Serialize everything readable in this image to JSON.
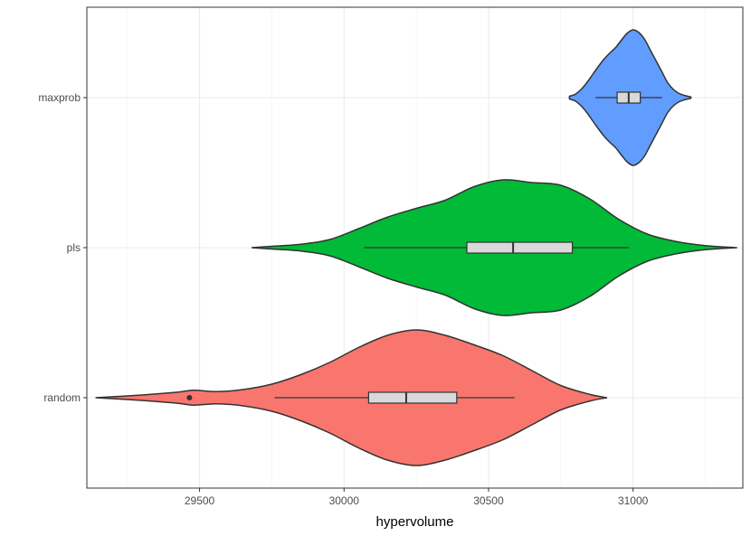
{
  "chart_data": {
    "type": "violin",
    "orientation": "horizontal",
    "title": "",
    "xlabel": "hypervolume",
    "ylabel": "",
    "xlim": [
      29110,
      31380
    ],
    "x_ticks": [
      29500,
      30000,
      30500,
      31000
    ],
    "x_tick_labels": [
      "29500",
      "30000",
      "30500",
      "31000"
    ],
    "grid": true,
    "legend": "none",
    "categories": [
      "maxprob",
      "pls",
      "random"
    ],
    "series": [
      {
        "category": "maxprob",
        "color": "#619CFF",
        "min": 30870,
        "q1": 30945,
        "median": 30985,
        "q3": 31025,
        "max": 31100,
        "outliers": [],
        "violin_range": [
          30780,
          31200
        ],
        "density": [
          [
            30780,
            0.02
          ],
          [
            30800,
            0.05
          ],
          [
            30820,
            0.12
          ],
          [
            30840,
            0.22
          ],
          [
            30860,
            0.34
          ],
          [
            30880,
            0.46
          ],
          [
            30900,
            0.57
          ],
          [
            30920,
            0.66
          ],
          [
            30940,
            0.74
          ],
          [
            30960,
            0.85
          ],
          [
            30980,
            0.95
          ],
          [
            31000,
            1.0
          ],
          [
            31020,
            0.96
          ],
          [
            31040,
            0.86
          ],
          [
            31060,
            0.7
          ],
          [
            31080,
            0.54
          ],
          [
            31100,
            0.38
          ],
          [
            31120,
            0.22
          ],
          [
            31140,
            0.12
          ],
          [
            31160,
            0.06
          ],
          [
            31180,
            0.03
          ],
          [
            31200,
            0.01
          ]
        ]
      },
      {
        "category": "pls",
        "color": "#00BA38",
        "min": 30070,
        "q1": 30425,
        "median": 30585,
        "q3": 30790,
        "max": 30985,
        "outliers": [],
        "violin_range": [
          29680,
          31360
        ],
        "density": [
          [
            29680,
            0.0
          ],
          [
            29750,
            0.02
          ],
          [
            29850,
            0.05
          ],
          [
            29950,
            0.12
          ],
          [
            30050,
            0.28
          ],
          [
            30150,
            0.45
          ],
          [
            30250,
            0.58
          ],
          [
            30350,
            0.7
          ],
          [
            30450,
            0.9
          ],
          [
            30550,
            1.0
          ],
          [
            30650,
            0.96
          ],
          [
            30750,
            0.92
          ],
          [
            30850,
            0.72
          ],
          [
            30950,
            0.42
          ],
          [
            31050,
            0.2
          ],
          [
            31150,
            0.09
          ],
          [
            31250,
            0.03
          ],
          [
            31360,
            0.0
          ]
        ]
      },
      {
        "category": "random",
        "color": "#F8766D",
        "min": 29760,
        "q1": 30085,
        "median": 30215,
        "q3": 30390,
        "max": 30590,
        "outliers": [
          29465
        ],
        "violin_range": [
          29140,
          30910
        ],
        "density": [
          [
            29140,
            0.0
          ],
          [
            29300,
            0.04
          ],
          [
            29420,
            0.08
          ],
          [
            29480,
            0.11
          ],
          [
            29560,
            0.09
          ],
          [
            29650,
            0.12
          ],
          [
            29750,
            0.2
          ],
          [
            29850,
            0.34
          ],
          [
            29950,
            0.52
          ],
          [
            30050,
            0.74
          ],
          [
            30150,
            0.92
          ],
          [
            30250,
            1.0
          ],
          [
            30350,
            0.92
          ],
          [
            30450,
            0.78
          ],
          [
            30550,
            0.62
          ],
          [
            30650,
            0.4
          ],
          [
            30750,
            0.18
          ],
          [
            30850,
            0.05
          ],
          [
            30910,
            0.0
          ]
        ]
      }
    ]
  }
}
